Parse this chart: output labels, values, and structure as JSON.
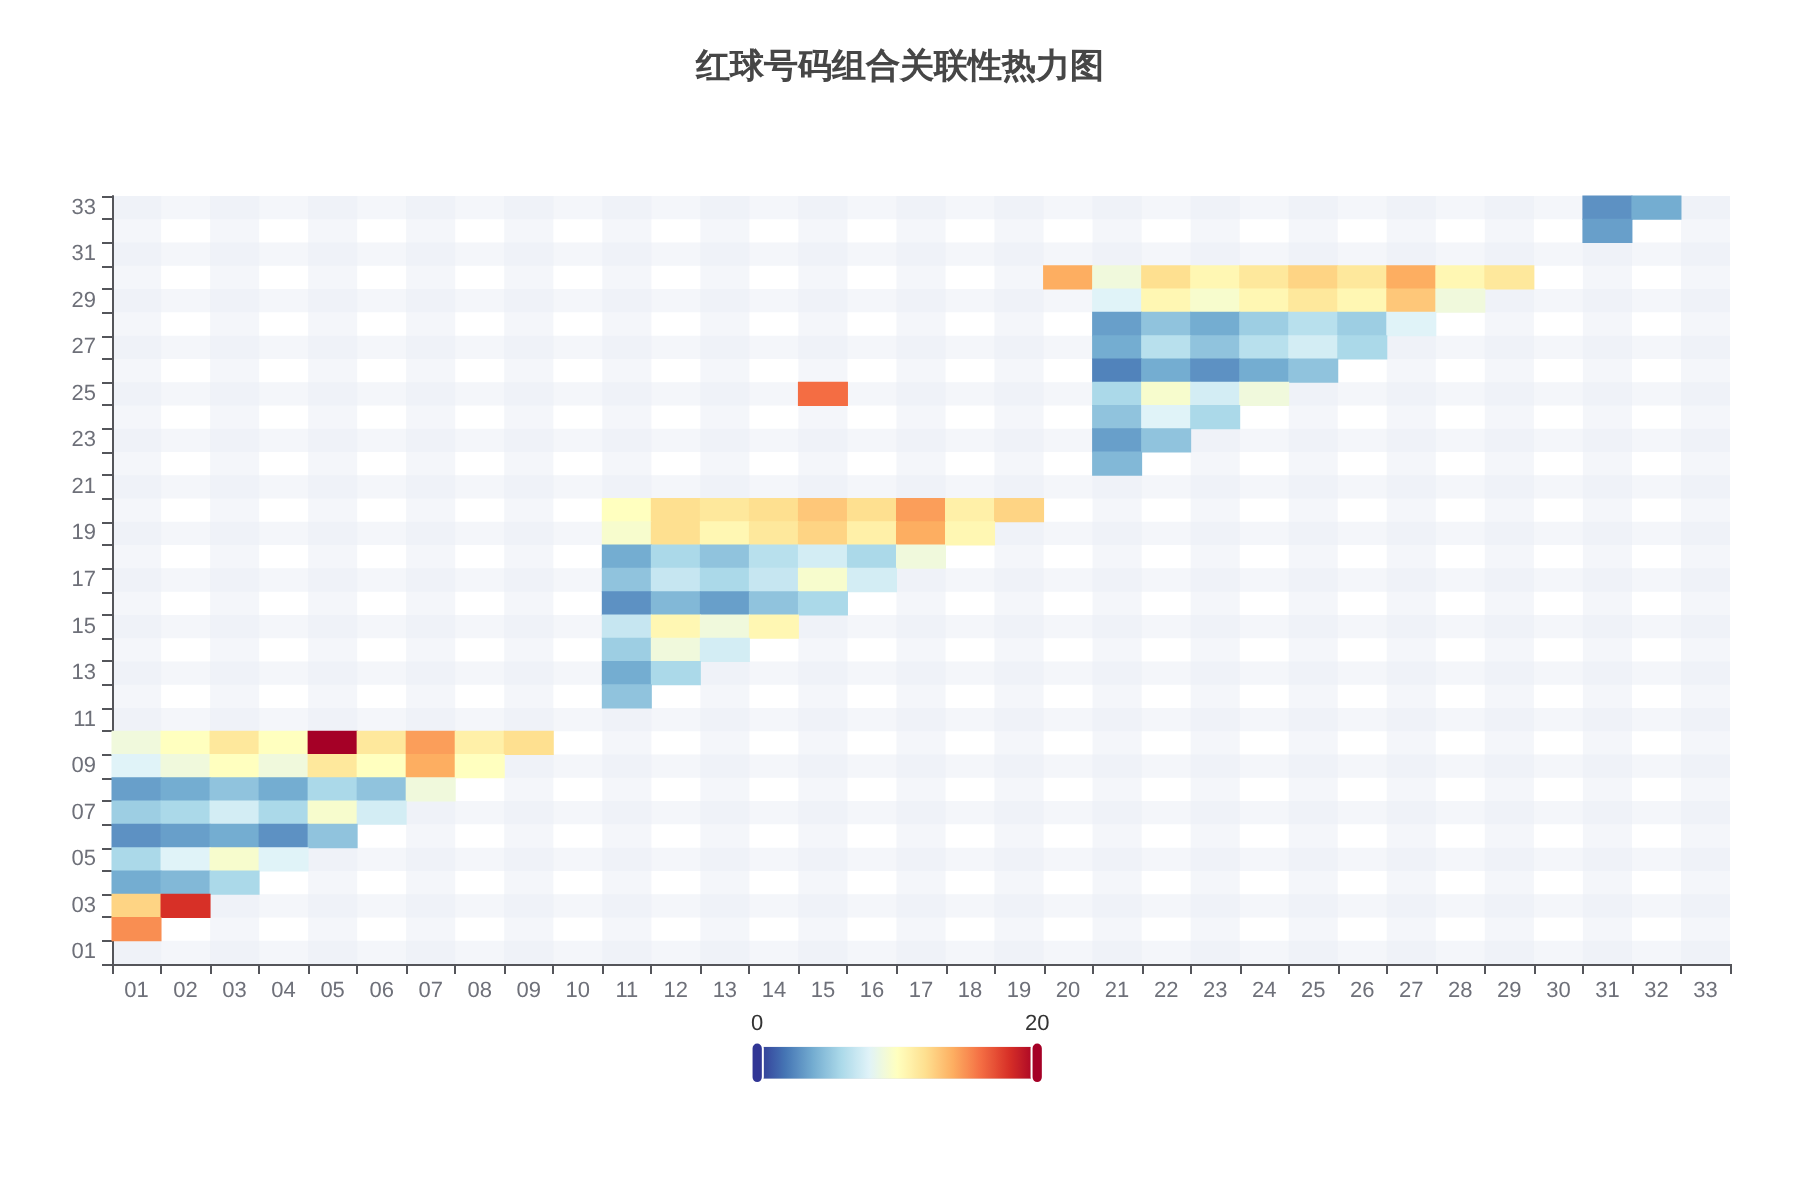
{
  "chart_data": {
    "type": "heatmap",
    "title": "红球号码组合关联性热力图",
    "categories": [
      "01",
      "02",
      "03",
      "04",
      "05",
      "06",
      "07",
      "08",
      "09",
      "10",
      "11",
      "12",
      "13",
      "14",
      "15",
      "16",
      "17",
      "18",
      "19",
      "20",
      "21",
      "22",
      "23",
      "24",
      "25",
      "26",
      "27",
      "28",
      "29",
      "30",
      "31",
      "32",
      "33"
    ],
    "y_categories": [
      "33",
      null,
      "31",
      null,
      "29",
      null,
      "27",
      null,
      "25",
      null,
      "23",
      null,
      "21",
      null,
      "19",
      null,
      "17",
      null,
      "15",
      null,
      "13",
      null,
      "11",
      null,
      "09",
      null,
      "07",
      null,
      "05",
      null,
      "03",
      null,
      "01"
    ],
    "cells": [
      [
        null,
        null,
        null,
        null,
        null,
        null,
        null,
        null,
        null,
        null,
        null,
        null,
        null,
        null,
        null,
        null,
        null,
        null,
        null,
        null,
        null,
        null,
        null,
        null,
        null,
        null,
        null,
        null,
        null,
        null,
        3,
        4,
        null
      ],
      [
        null,
        null,
        null,
        null,
        null,
        null,
        null,
        null,
        null,
        null,
        null,
        null,
        null,
        null,
        null,
        null,
        null,
        null,
        null,
        null,
        null,
        null,
        null,
        null,
        null,
        null,
        null,
        null,
        null,
        null,
        3.5,
        null,
        null
      ],
      [
        null,
        null,
        null,
        null,
        null,
        null,
        null,
        null,
        null,
        null,
        null,
        null,
        null,
        null,
        null,
        null,
        null,
        null,
        null,
        null,
        null,
        null,
        null,
        null,
        null,
        null,
        null,
        null,
        null,
        null,
        null,
        null,
        null
      ],
      [
        null,
        null,
        null,
        null,
        null,
        null,
        null,
        null,
        null,
        null,
        null,
        null,
        null,
        null,
        null,
        null,
        null,
        null,
        null,
        14,
        9,
        12,
        10.5,
        11.5,
        12.5,
        11.5,
        14,
        10.5,
        11.5,
        null,
        null,
        null,
        null
      ],
      [
        null,
        null,
        null,
        null,
        null,
        null,
        null,
        null,
        null,
        null,
        null,
        null,
        null,
        null,
        null,
        null,
        null,
        null,
        null,
        null,
        8,
        10.5,
        9.5,
        10.5,
        11.5,
        10.5,
        13,
        9,
        null,
        null,
        null,
        null,
        null
      ],
      [
        null,
        null,
        null,
        null,
        null,
        null,
        null,
        null,
        null,
        null,
        null,
        null,
        null,
        null,
        null,
        null,
        null,
        null,
        null,
        null,
        3.5,
        5,
        4,
        5.5,
        6.5,
        5.5,
        8,
        null,
        null,
        null,
        null,
        null,
        null
      ],
      [
        null,
        null,
        null,
        null,
        null,
        null,
        null,
        null,
        null,
        null,
        null,
        null,
        null,
        null,
        null,
        null,
        null,
        null,
        null,
        null,
        4,
        6.5,
        5,
        6.5,
        7.5,
        6,
        null,
        null,
        null,
        null,
        null,
        null,
        null
      ],
      [
        null,
        null,
        null,
        null,
        null,
        null,
        null,
        null,
        null,
        null,
        null,
        null,
        null,
        null,
        null,
        null,
        null,
        null,
        null,
        null,
        2.5,
        4,
        3,
        4,
        5,
        null,
        null,
        null,
        null,
        null,
        null,
        null,
        null
      ],
      [
        null,
        null,
        null,
        null,
        null,
        null,
        null,
        null,
        null,
        null,
        null,
        null,
        null,
        null,
        16,
        null,
        null,
        null,
        null,
        null,
        6,
        9.5,
        7.5,
        9,
        null,
        null,
        null,
        null,
        null,
        null,
        null,
        null,
        null
      ],
      [
        null,
        null,
        null,
        null,
        null,
        null,
        null,
        null,
        null,
        null,
        null,
        null,
        null,
        null,
        null,
        null,
        null,
        null,
        null,
        null,
        5,
        8,
        6,
        null,
        null,
        null,
        null,
        null,
        null,
        null,
        null,
        null,
        null
      ],
      [
        null,
        null,
        null,
        null,
        null,
        null,
        null,
        null,
        null,
        null,
        null,
        null,
        null,
        null,
        null,
        null,
        null,
        null,
        null,
        null,
        3.5,
        5,
        null,
        null,
        null,
        null,
        null,
        null,
        null,
        null,
        null,
        null,
        null
      ],
      [
        null,
        null,
        null,
        null,
        null,
        null,
        null,
        null,
        null,
        null,
        null,
        null,
        null,
        null,
        null,
        null,
        null,
        null,
        null,
        null,
        4.5,
        null,
        null,
        null,
        null,
        null,
        null,
        null,
        null,
        null,
        null,
        null,
        null
      ],
      [
        null,
        null,
        null,
        null,
        null,
        null,
        null,
        null,
        null,
        null,
        null,
        null,
        null,
        null,
        null,
        null,
        null,
        null,
        null,
        null,
        null,
        null,
        null,
        null,
        null,
        null,
        null,
        null,
        null,
        null,
        null,
        null,
        null
      ],
      [
        null,
        null,
        null,
        null,
        null,
        null,
        null,
        null,
        null,
        null,
        10,
        12,
        11.5,
        12,
        13,
        12,
        14.5,
        11,
        12.5,
        null,
        null,
        null,
        null,
        null,
        null,
        null,
        null,
        null,
        null,
        null,
        null,
        null,
        null
      ],
      [
        null,
        null,
        null,
        null,
        null,
        null,
        null,
        null,
        null,
        null,
        9.5,
        12,
        10.5,
        11.5,
        12.5,
        11,
        14,
        10.5,
        null,
        null,
        null,
        null,
        null,
        null,
        null,
        null,
        null,
        null,
        null,
        null,
        null,
        null,
        null
      ],
      [
        null,
        null,
        null,
        null,
        null,
        null,
        null,
        null,
        null,
        null,
        4,
        6,
        5,
        6.5,
        7.5,
        6,
        9,
        null,
        null,
        null,
        null,
        null,
        null,
        null,
        null,
        null,
        null,
        null,
        null,
        null,
        null,
        null,
        null
      ],
      [
        null,
        null,
        null,
        null,
        null,
        null,
        null,
        null,
        null,
        null,
        5,
        7,
        6,
        7,
        9.5,
        7.5,
        null,
        null,
        null,
        null,
        null,
        null,
        null,
        null,
        null,
        null,
        null,
        null,
        null,
        null,
        null,
        null,
        null
      ],
      [
        null,
        null,
        null,
        null,
        null,
        null,
        null,
        null,
        null,
        null,
        3,
        4.5,
        3.5,
        5,
        6,
        null,
        null,
        null,
        null,
        null,
        null,
        null,
        null,
        null,
        null,
        null,
        null,
        null,
        null,
        null,
        null,
        null,
        null
      ],
      [
        null,
        null,
        null,
        null,
        null,
        null,
        null,
        null,
        null,
        null,
        7,
        10.5,
        9,
        10.5,
        null,
        null,
        null,
        null,
        null,
        null,
        null,
        null,
        null,
        null,
        null,
        null,
        null,
        null,
        null,
        null,
        null,
        null,
        null
      ],
      [
        null,
        null,
        null,
        null,
        null,
        null,
        null,
        null,
        null,
        null,
        5.5,
        9,
        7.5,
        null,
        null,
        null,
        null,
        null,
        null,
        null,
        null,
        null,
        null,
        null,
        null,
        null,
        null,
        null,
        null,
        null,
        null,
        null,
        null
      ],
      [
        null,
        null,
        null,
        null,
        null,
        null,
        null,
        null,
        null,
        null,
        4,
        6,
        null,
        null,
        null,
        null,
        null,
        null,
        null,
        null,
        null,
        null,
        null,
        null,
        null,
        null,
        null,
        null,
        null,
        null,
        null,
        null,
        null
      ],
      [
        null,
        null,
        null,
        null,
        null,
        null,
        null,
        null,
        null,
        null,
        5,
        null,
        null,
        null,
        null,
        null,
        null,
        null,
        null,
        null,
        null,
        null,
        null,
        null,
        null,
        null,
        null,
        null,
        null,
        null,
        null,
        null,
        null
      ],
      [
        null,
        null,
        null,
        null,
        null,
        null,
        null,
        null,
        null,
        null,
        null,
        null,
        null,
        null,
        null,
        null,
        null,
        null,
        null,
        null,
        null,
        null,
        null,
        null,
        null,
        null,
        null,
        null,
        null,
        null,
        null,
        null,
        null
      ],
      [
        9,
        10,
        11.5,
        10,
        20,
        11.5,
        14.5,
        11,
        12,
        null,
        null,
        null,
        null,
        null,
        null,
        null,
        null,
        null,
        null,
        null,
        null,
        null,
        null,
        null,
        null,
        null,
        null,
        null,
        null,
        null,
        null,
        null,
        null
      ],
      [
        8,
        9,
        10,
        9,
        11.5,
        10,
        14,
        10,
        null,
        null,
        null,
        null,
        null,
        null,
        null,
        null,
        null,
        null,
        null,
        null,
        null,
        null,
        null,
        null,
        null,
        null,
        null,
        null,
        null,
        null,
        null,
        null,
        null
      ],
      [
        3.5,
        4,
        5,
        4,
        6,
        5,
        9,
        null,
        null,
        null,
        null,
        null,
        null,
        null,
        null,
        null,
        null,
        null,
        null,
        null,
        null,
        null,
        null,
        null,
        null,
        null,
        null,
        null,
        null,
        null,
        null,
        null,
        null
      ],
      [
        5.5,
        6,
        7.5,
        6,
        9.5,
        7.5,
        null,
        null,
        null,
        null,
        null,
        null,
        null,
        null,
        null,
        null,
        null,
        null,
        null,
        null,
        null,
        null,
        null,
        null,
        null,
        null,
        null,
        null,
        null,
        null,
        null,
        null,
        null
      ],
      [
        3,
        3.5,
        4,
        3,
        5,
        null,
        null,
        null,
        null,
        null,
        null,
        null,
        null,
        null,
        null,
        null,
        null,
        null,
        null,
        null,
        null,
        null,
        null,
        null,
        null,
        null,
        null,
        null,
        null,
        null,
        null,
        null,
        null
      ],
      [
        6,
        8,
        9.5,
        8,
        null,
        null,
        null,
        null,
        null,
        null,
        null,
        null,
        null,
        null,
        null,
        null,
        null,
        null,
        null,
        null,
        null,
        null,
        null,
        null,
        null,
        null,
        null,
        null,
        null,
        null,
        null,
        null,
        null
      ],
      [
        4,
        4.5,
        6,
        null,
        null,
        null,
        null,
        null,
        null,
        null,
        null,
        null,
        null,
        null,
        null,
        null,
        null,
        null,
        null,
        null,
        null,
        null,
        null,
        null,
        null,
        null,
        null,
        null,
        null,
        null,
        null,
        null,
        null
      ],
      [
        12.5,
        18,
        null,
        null,
        null,
        null,
        null,
        null,
        null,
        null,
        null,
        null,
        null,
        null,
        null,
        null,
        null,
        null,
        null,
        null,
        null,
        null,
        null,
        null,
        null,
        null,
        null,
        null,
        null,
        null,
        null,
        null,
        null
      ],
      [
        15,
        null,
        null,
        null,
        null,
        null,
        null,
        null,
        null,
        null,
        null,
        null,
        null,
        null,
        null,
        null,
        null,
        null,
        null,
        null,
        null,
        null,
        null,
        null,
        null,
        null,
        null,
        null,
        null,
        null,
        null,
        null,
        null
      ],
      [
        null,
        null,
        null,
        null,
        null,
        null,
        null,
        null,
        null,
        null,
        null,
        null,
        null,
        null,
        null,
        null,
        null,
        null,
        null,
        null,
        null,
        null,
        null,
        null,
        null,
        null,
        null,
        null,
        null,
        null,
        null,
        null,
        null
      ]
    ],
    "clim": [
      0,
      20
    ],
    "cticks": [
      0,
      20
    ],
    "colors": [
      "#313695",
      "#4575b4",
      "#74add1",
      "#abd9e9",
      "#e0f3f8",
      "#ffffbf",
      "#fee090",
      "#fdae61",
      "#f46d43",
      "#d73027",
      "#a50026"
    ],
    "grid": false
  }
}
